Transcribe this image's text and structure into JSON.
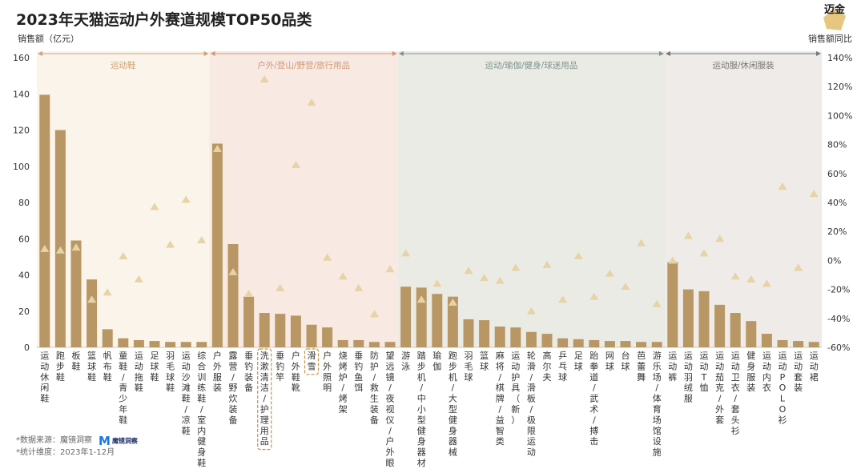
{
  "title": "2023年天猫运动户外赛道规模TOP50品类",
  "logo_text": "迈金",
  "footer": {
    "source_label": "*数据来源：魔镜洞察",
    "period_label": "*统计维度：2023年1-12月",
    "brand_name": "魔镜洞察"
  },
  "colors": {
    "bar": "#b89764",
    "marker": "#e6d3a6",
    "axis_text": "#333333",
    "highlight": "#c8924c"
  },
  "chart_data": {
    "type": "bar",
    "title": "2023年天猫运动户外赛道规模TOP50品类",
    "ylabel": "销售额（亿元）",
    "y2label": "销售额同比",
    "ylim": [
      0,
      160
    ],
    "yticks": [
      0,
      20,
      40,
      60,
      80,
      100,
      120,
      140,
      160
    ],
    "y2lim": [
      -60,
      140
    ],
    "y2ticks": [
      "-60%",
      "-40%",
      "-20%",
      "0%",
      "20%",
      "40%",
      "60%",
      "80%",
      "100%",
      "120%",
      "140%"
    ],
    "groups": [
      {
        "name": "运动鞋",
        "start": 0,
        "end": 10,
        "bg": "#fbf4ea",
        "color": "#cfa374"
      },
      {
        "name": "户外/登山/野营/旅行用品",
        "start": 11,
        "end": 22,
        "bg": "#f8e9e2",
        "color": "#cf9a78"
      },
      {
        "name": "运动/瑜伽/健身/球迷用品",
        "start": 23,
        "end": 39,
        "bg": "#ebebe6",
        "color": "#7d968d"
      },
      {
        "name": "运动服/休闲服装",
        "start": 40,
        "end": 49,
        "bg": "#eeebe8",
        "color": "#777777"
      }
    ],
    "highlighted": [
      "洗漱清洁/护理用品",
      "滑雪"
    ],
    "categories": [
      "运动休闲鞋",
      "跑步鞋",
      "板鞋",
      "篮球鞋",
      "帆布鞋",
      "童鞋/青少年鞋",
      "运动拖鞋",
      "足球鞋",
      "羽毛球鞋",
      "运动沙滩鞋/凉鞋",
      "综合训练鞋/室内健身鞋",
      "户外服装",
      "露营/野炊装备",
      "垂钓装备",
      "洗漱清洁/护理用品",
      "垂钓竿",
      "户外鞋靴",
      "滑雪",
      "户外照明",
      "烧烤炉/烤架",
      "垂钓鱼饵",
      "防护/救生装备",
      "望远镜/夜视仪/户外眼镜",
      "游泳",
      "踏步机/中小型健身器材",
      "瑜伽",
      "跑步机/大型健身器械",
      "羽毛球",
      "篮球",
      "麻将/棋牌/益智类",
      "运动护具（新）",
      "轮滑/滑板/极限运动",
      "高尔夫",
      "乒乓球",
      "足球",
      "跆拳道/武术/搏击",
      "网球",
      "台球",
      "芭蕾舞",
      "游乐场/体育场馆设施",
      "运动裤",
      "运动羽绒服",
      "运动T恤",
      "运动茄克/外套",
      "运动卫衣/套头衫",
      "健身服装",
      "运动内衣",
      "运动POLO衫",
      "运动套装",
      "运动裙"
    ],
    "values": [
      139.5,
      120,
      59,
      37.5,
      10,
      5,
      4,
      3.5,
      3,
      3,
      3,
      112.5,
      57,
      28,
      19,
      18.5,
      17.5,
      12.5,
      11,
      4,
      4,
      3,
      3,
      33.5,
      33,
      29.5,
      28,
      15.5,
      15,
      11.5,
      11,
      8.5,
      7.5,
      5,
      4.5,
      4,
      3.5,
      3.5,
      3,
      3,
      47,
      32,
      31,
      23.5,
      19,
      14.5,
      7.5,
      4,
      3.5,
      3
    ],
    "yoy": [
      8,
      7,
      9,
      -27,
      -22,
      3,
      -13,
      37,
      11,
      42,
      14,
      77,
      -8,
      -23,
      125,
      -19,
      66,
      109,
      2,
      -11,
      -19,
      -37,
      -6,
      5,
      -27,
      -16,
      -29,
      -7,
      -12,
      -14,
      -5,
      -35,
      -3,
      -27,
      3,
      -25,
      -9,
      -18,
      12,
      -30,
      0,
      17,
      5,
      15,
      -11,
      -13,
      -16,
      51,
      -5,
      46
    ]
  }
}
